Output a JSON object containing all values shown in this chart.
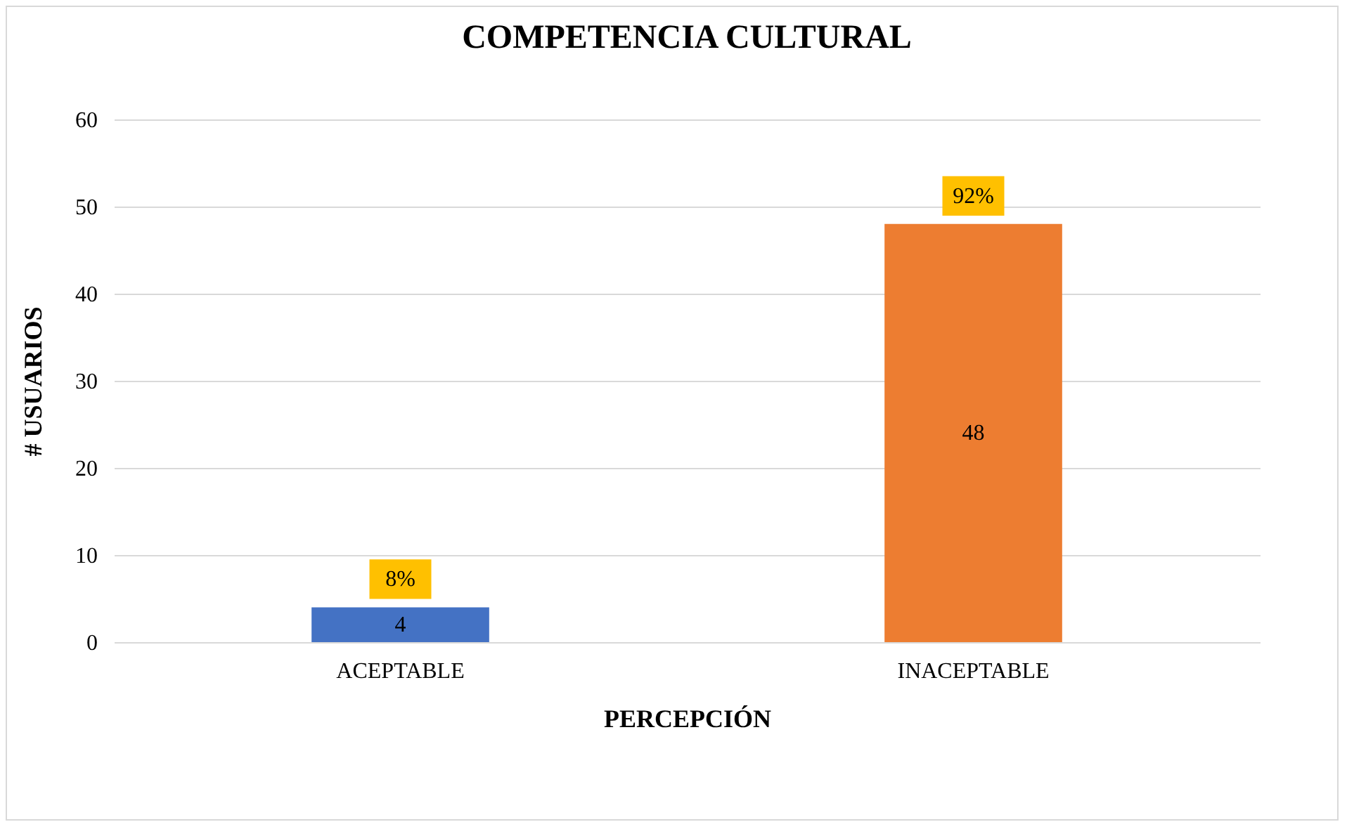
{
  "chart_data": {
    "type": "bar",
    "title": "COMPETENCIA CULTURAL",
    "xlabel": "PERCEPCIÓN",
    "ylabel": "# USUARIOS",
    "categories": [
      "ACEPTABLE",
      "INACEPTABLE"
    ],
    "values": [
      4,
      48
    ],
    "colors": [
      "#4472c4",
      "#ed7d31"
    ],
    "ylim": [
      0,
      60
    ],
    "yticks": [
      0,
      10,
      20,
      30,
      40,
      50,
      60
    ],
    "grid": "y",
    "data_labels": true,
    "annotations": [
      {
        "text": "8%",
        "x": "ACEPTABLE",
        "y": 4
      },
      {
        "text": "92%",
        "x": "INACEPTABLE",
        "y": 48
      }
    ]
  }
}
